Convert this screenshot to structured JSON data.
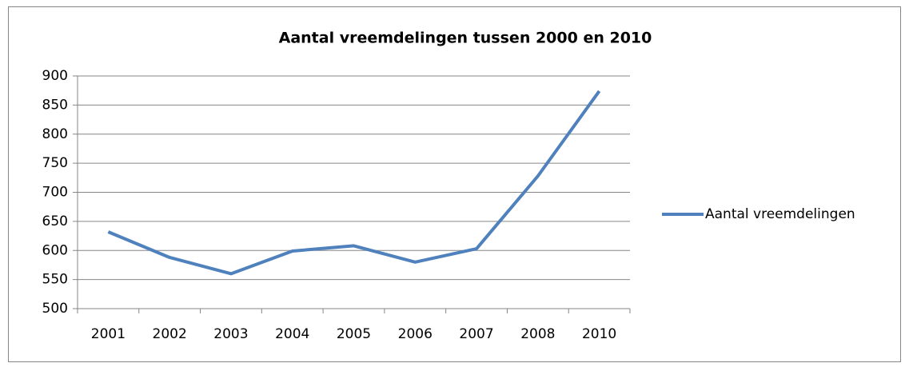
{
  "chart_data": {
    "type": "line",
    "title": "Aantal vreemdelingen tussen 2000 en 2010",
    "categories": [
      "2001",
      "2002",
      "2003",
      "2004",
      "2005",
      "2006",
      "2007",
      "2008",
      "2010"
    ],
    "series": [
      {
        "name": "Aantal vreemdelingen",
        "color": "#4f81bd",
        "values": [
          632,
          588,
          560,
          599,
          608,
          580,
          603,
          728,
          874
        ]
      }
    ],
    "ylim": [
      500,
      900
    ],
    "yticks": [
      500,
      550,
      600,
      650,
      700,
      750,
      800,
      850,
      900
    ],
    "grid": true,
    "legend": "right"
  }
}
